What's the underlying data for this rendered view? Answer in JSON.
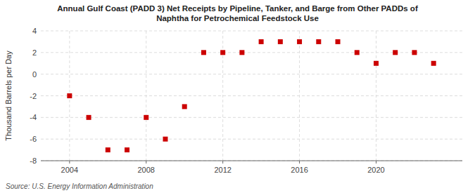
{
  "chart_data": {
    "type": "scatter",
    "title": "Annual Gulf Coast (PADD 3) Net Receipts by Pipeline, Tanker, and Barge from Other PADDs of\nNaphtha for Petrochemical Feedstock Use",
    "y_label": "Thousand Barrels per Day",
    "source": "Source: U.S. Energy Information Administration",
    "x": [
      2004,
      2005,
      2006,
      2007,
      2008,
      2009,
      2010,
      2011,
      2012,
      2013,
      2014,
      2015,
      2016,
      2017,
      2018,
      2019,
      2020,
      2021,
      2022,
      2023
    ],
    "values": [
      -2,
      -4,
      -7,
      -7,
      -4,
      -6,
      -3,
      2,
      2,
      2,
      3,
      3,
      3,
      3,
      3,
      2,
      1,
      2,
      2,
      1
    ],
    "color": "#cc0000",
    "marker": "square",
    "xlim": [
      2002.5,
      2024.5
    ],
    "ylim": [
      -8,
      4
    ],
    "xticks": [
      2004,
      2008,
      2012,
      2016,
      2020
    ],
    "yticks": [
      -8,
      -6,
      -4,
      -2,
      0,
      2,
      4
    ],
    "grid": true
  }
}
